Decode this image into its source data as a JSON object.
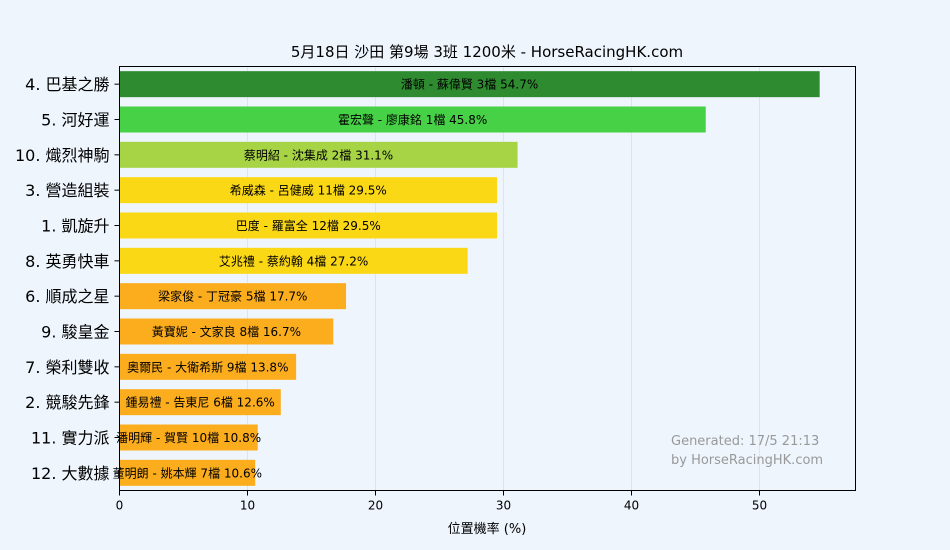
{
  "chart_data": {
    "type": "bar",
    "orientation": "horizontal",
    "title": "5月18日  沙田  第9場  3班  1200米 - HorseRacingHK.com",
    "xlabel": "位置機率 (%)",
    "ylabel": "",
    "xlim": [
      0,
      57.5
    ],
    "xticks": [
      0,
      10,
      20,
      30,
      40,
      50
    ],
    "grid": true,
    "bars": [
      {
        "category": "4. 巴基之勝",
        "label": "潘頓 - 蘇偉賢 3檔  54.7%",
        "value": 54.7,
        "color": "#2e8b30"
      },
      {
        "category": "5. 河好運",
        "label": "霍宏聲 - 廖康銘 1檔  45.8%",
        "value": 45.8,
        "color": "#47d147"
      },
      {
        "category": "10. 熾烈神駒",
        "label": "蔡明紹 - 沈集成 2檔  31.1%",
        "value": 31.1,
        "color": "#a6d445"
      },
      {
        "category": "3. 營造組裝",
        "label": "希威森 - 呂健威 11檔  29.5%",
        "value": 29.5,
        "color": "#fbd816"
      },
      {
        "category": "1. 凱旋升",
        "label": "巴度 - 羅富全 12檔  29.5%",
        "value": 29.5,
        "color": "#fbd816"
      },
      {
        "category": "8. 英勇快車",
        "label": "艾兆禮 - 蔡約翰 4檔  27.2%",
        "value": 27.2,
        "color": "#fbd816"
      },
      {
        "category": "6. 順成之星",
        "label": "梁家俊 - 丁冠豪 5檔  17.7%",
        "value": 17.7,
        "color": "#fbad1e"
      },
      {
        "category": "9. 駿皇金",
        "label": "黃寶妮 - 文家良 8檔  16.7%",
        "value": 16.7,
        "color": "#fbad1e"
      },
      {
        "category": "7. 榮利雙收",
        "label": "奧爾民 - 大衛希斯 9檔  13.8%",
        "value": 13.8,
        "color": "#fbad1e"
      },
      {
        "category": "2. 競駿先鋒",
        "label": "鍾易禮 - 告東尼 6檔  12.6%",
        "value": 12.6,
        "color": "#fbad1e"
      },
      {
        "category": "11. 實力派",
        "label": "潘明輝 - 賀賢 10檔  10.8%",
        "value": 10.8,
        "color": "#fbad1e"
      },
      {
        "category": "12. 大數據",
        "label": "董明朗 - 姚本輝 7檔  10.6%",
        "value": 10.6,
        "color": "#fbad1e"
      }
    ],
    "annotation": [
      "Generated: 17/5 21:13",
      "by HorseRacingHK.com"
    ]
  },
  "colors": {
    "background": "#eef5fd",
    "plot_background": "#eef5fd",
    "grid": "#dde4ec"
  }
}
